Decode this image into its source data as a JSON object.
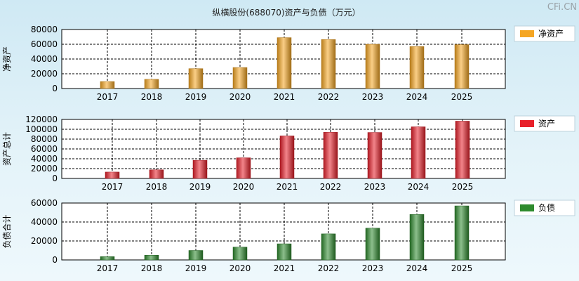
{
  "title": "纵横股份(688070)资产与负债（万元）",
  "watermark": "CFi.CN",
  "colors": {
    "net_assets": "#f5a623",
    "total_assets": "#e8202a",
    "liabilities": "#2e8b2e"
  },
  "chart_data": [
    {
      "type": "bar",
      "ylabel": "净资产",
      "legend": "净资产",
      "categories": [
        "2017",
        "2018",
        "2019",
        "2020",
        "2021",
        "2022",
        "2023",
        "2024",
        "2025"
      ],
      "values": [
        9500,
        12500,
        27000,
        28500,
        69000,
        66500,
        60000,
        57000,
        59500
      ],
      "ylim": [
        0,
        80000
      ],
      "yticks": [
        0,
        20000,
        40000,
        60000,
        80000
      ],
      "grid": true,
      "legend_position": "right"
    },
    {
      "type": "bar",
      "ylabel": "资产总计",
      "legend": "资产",
      "categories": [
        "2017",
        "2018",
        "2019",
        "2020",
        "2021",
        "2022",
        "2023",
        "2024",
        "2025"
      ],
      "values": [
        13000,
        17500,
        37000,
        42000,
        86500,
        94000,
        93500,
        105000,
        116500
      ],
      "ylim": [
        0,
        120000
      ],
      "yticks": [
        0,
        20000,
        40000,
        60000,
        80000,
        100000,
        120000
      ],
      "grid": true,
      "legend_position": "right"
    },
    {
      "type": "bar",
      "ylabel": "负债合计",
      "legend": "负债",
      "categories": [
        "2017",
        "2018",
        "2019",
        "2020",
        "2021",
        "2022",
        "2023",
        "2024",
        "2025"
      ],
      "values": [
        3500,
        5000,
        10000,
        13500,
        17000,
        27500,
        33500,
        48000,
        57000
      ],
      "ylim": [
        0,
        60000
      ],
      "yticks": [
        0,
        20000,
        40000,
        60000
      ],
      "grid": true,
      "legend_position": "right"
    }
  ]
}
